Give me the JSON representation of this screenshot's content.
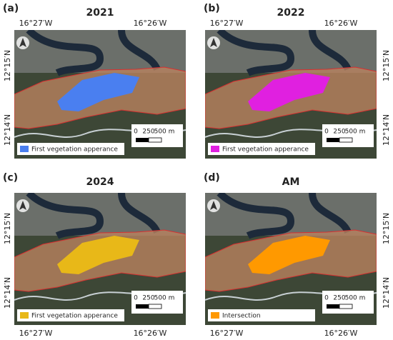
{
  "panels": [
    {
      "label": "(a)",
      "title": "2021",
      "lon_labels": [
        "16°27′W",
        "16°26′W"
      ],
      "lat_labels": [
        "12°15′N",
        "12°14′N"
      ],
      "legend": {
        "label": "First vegetation apperance",
        "color": "#4a7ff0"
      },
      "scale": [
        "0",
        "250",
        "500 m"
      ]
    },
    {
      "label": "(b)",
      "title": "2022",
      "lon_labels": [
        "16°27′W",
        "16°26′W"
      ],
      "lat_labels": [
        "12°15′N",
        "12°14′N"
      ],
      "legend": {
        "label": "First vegetation apperance",
        "color": "#e020e0"
      },
      "scale": [
        "0",
        "250",
        "500 m"
      ]
    },
    {
      "label": "(c)",
      "title": "2024",
      "lon_labels": [
        "16°27′W",
        "16°26′W"
      ],
      "lat_labels": [
        "12°15′N",
        "12°14′N"
      ],
      "legend": {
        "label": "First vegetation apperance",
        "color": "#e8b818"
      },
      "scale": [
        "0",
        "250",
        "500 m"
      ]
    },
    {
      "label": "(d)",
      "title": "AM",
      "lon_labels": [
        "16°27′W",
        "16°26′W"
      ],
      "lat_labels": [
        "12°15′N",
        "12°14′N"
      ],
      "legend": {
        "label": "Intersection",
        "color": "#ff9900"
      },
      "scale": [
        "0",
        "250",
        "500 m"
      ]
    }
  ]
}
